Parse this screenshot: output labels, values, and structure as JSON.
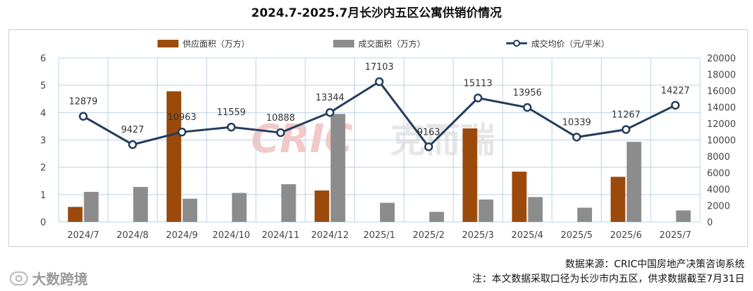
{
  "title": "2024.7-2025.7月长沙内五区公寓供销价情况",
  "footer": {
    "source": "数据来源：CRIC中国房地产决策咨询系统",
    "note": "注：本文数据采取口径为长沙市内五区，供求数据截至7月31日",
    "brand": "大数跨境"
  },
  "watermark": {
    "text": "CRIC",
    "text_cn": "克而瑞"
  },
  "colors": {
    "supply": "#9b4a0c",
    "deal": "#8c8c8c",
    "price": "#243c5c",
    "grid": "#b9d3e8"
  },
  "chart_data": {
    "type": "bar",
    "categories": [
      "2024/7",
      "2024/8",
      "2024/9",
      "2024/10",
      "2024/11",
      "2024/12",
      "2025/1",
      "2025/2",
      "2025/3",
      "2025/4",
      "2025/5",
      "2025/6",
      "2025/7"
    ],
    "series": [
      {
        "name": "供应面积（万方）",
        "type": "bar",
        "axis": "left",
        "values": [
          0.55,
          null,
          4.78,
          null,
          null,
          1.15,
          null,
          null,
          3.42,
          1.84,
          null,
          1.65,
          null
        ]
      },
      {
        "name": "成交面积（万方）",
        "type": "bar",
        "axis": "left",
        "values": [
          1.1,
          1.28,
          0.85,
          1.06,
          1.38,
          3.95,
          0.7,
          0.37,
          0.82,
          0.91,
          0.52,
          2.93,
          0.42
        ]
      },
      {
        "name": "成交均价（元/平米）",
        "type": "line",
        "axis": "right",
        "values": [
          12879,
          9427,
          10963,
          11559,
          10888,
          13344,
          17103,
          9163,
          15113,
          13956,
          10339,
          11267,
          14227
        ],
        "labels": [
          "12879",
          "9427",
          "10963",
          "11559",
          "10888",
          "13344",
          "17103",
          "9163",
          "15113",
          "13956",
          "10339",
          "11267",
          "14227"
        ]
      }
    ],
    "ylim": [
      0,
      6
    ],
    "y_ticks": [
      "0",
      "1",
      "2",
      "3",
      "4",
      "5",
      "6"
    ],
    "y2lim": [
      0,
      20000
    ],
    "y2_ticks": [
      "0",
      "2000",
      "4000",
      "6000",
      "8000",
      "10000",
      "12000",
      "14000",
      "16000",
      "18000",
      "20000"
    ],
    "legend_position": "top",
    "grid": true
  }
}
